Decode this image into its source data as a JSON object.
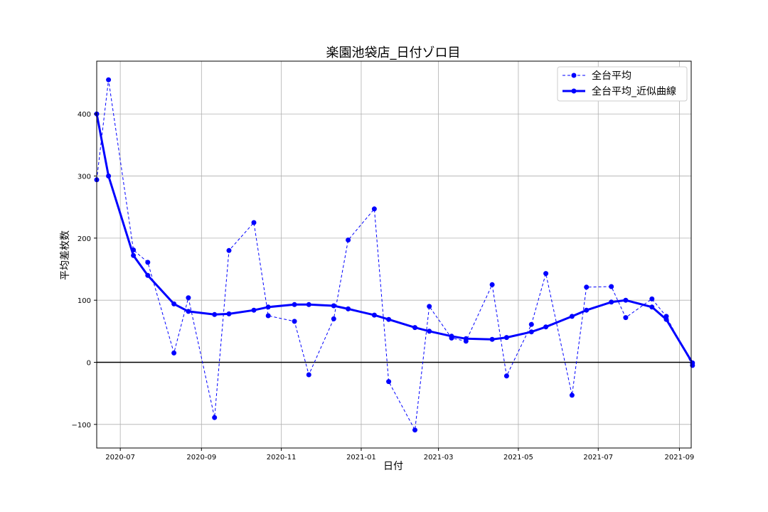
{
  "chart_data": {
    "type": "line",
    "title": "楽園池袋店_日付ゾロ目",
    "xlabel": "日付",
    "ylabel": "平均差枚数",
    "ylim": [
      -138,
      485
    ],
    "xlim": [
      "2020-06-13",
      "2021-09-10"
    ],
    "grid": true,
    "legend_position": "top-right",
    "x_tick_labels": [
      "2020-07",
      "2020-09",
      "2020-11",
      "2021-01",
      "2021-03",
      "2021-05",
      "2021-07",
      "2021-09"
    ],
    "y_tick_labels": [
      "−100",
      "0",
      "100",
      "200",
      "300",
      "400"
    ],
    "y_ticks": [
      -100,
      0,
      100,
      200,
      300,
      400
    ],
    "reference_line_y": 0,
    "series": [
      {
        "name": "全台平均",
        "style": "dashed-markers",
        "color": "#0000ff",
        "points": [
          [
            "2020-06-13",
            294
          ],
          [
            "2020-06-22",
            455
          ],
          [
            "2020-07-11",
            181
          ],
          [
            "2020-07-22",
            161
          ],
          [
            "2020-08-11",
            15
          ],
          [
            "2020-08-22",
            104
          ],
          [
            "2020-09-11",
            -89
          ],
          [
            "2020-09-22",
            180
          ],
          [
            "2020-10-11",
            225
          ],
          [
            "2020-10-22",
            75
          ],
          [
            "2020-11-11",
            66
          ],
          [
            "2020-11-22",
            -20
          ],
          [
            "2020-12-11",
            70
          ],
          [
            "2020-12-22",
            197
          ],
          [
            "2021-01-11",
            247
          ],
          [
            "2021-01-22",
            -31
          ],
          [
            "2021-02-11",
            -109
          ],
          [
            "2021-02-22",
            90
          ],
          [
            "2021-03-11",
            39
          ],
          [
            "2021-03-22",
            34
          ],
          [
            "2021-04-11",
            125
          ],
          [
            "2021-04-22",
            -22
          ],
          [
            "2021-05-11",
            61
          ],
          [
            "2021-05-22",
            143
          ],
          [
            "2021-06-11",
            -53
          ],
          [
            "2021-06-22",
            121
          ],
          [
            "2021-07-11",
            122
          ],
          [
            "2021-07-22",
            72
          ],
          [
            "2021-08-11",
            102
          ],
          [
            "2021-08-22",
            74
          ],
          [
            "2021-09-11",
            -5
          ]
        ]
      },
      {
        "name": "全台平均_近似曲線",
        "style": "solid-markers",
        "color": "#0000ff",
        "points": [
          [
            "2020-06-13",
            400
          ],
          [
            "2020-06-22",
            300
          ],
          [
            "2020-07-11",
            172
          ],
          [
            "2020-07-22",
            140
          ],
          [
            "2020-08-11",
            94
          ],
          [
            "2020-08-22",
            82
          ],
          [
            "2020-09-11",
            77
          ],
          [
            "2020-09-22",
            78
          ],
          [
            "2020-10-11",
            84
          ],
          [
            "2020-10-22",
            89
          ],
          [
            "2020-11-11",
            93
          ],
          [
            "2020-11-22",
            93
          ],
          [
            "2020-12-11",
            91
          ],
          [
            "2020-12-22",
            86
          ],
          [
            "2021-01-11",
            76
          ],
          [
            "2021-01-22",
            69
          ],
          [
            "2021-02-11",
            56
          ],
          [
            "2021-02-22",
            50
          ],
          [
            "2021-03-11",
            42
          ],
          [
            "2021-03-22",
            38
          ],
          [
            "2021-04-11",
            37
          ],
          [
            "2021-04-22",
            40
          ],
          [
            "2021-05-11",
            49
          ],
          [
            "2021-05-22",
            57
          ],
          [
            "2021-06-11",
            74
          ],
          [
            "2021-06-22",
            84
          ],
          [
            "2021-07-11",
            97
          ],
          [
            "2021-07-22",
            100
          ],
          [
            "2021-08-11",
            89
          ],
          [
            "2021-08-22",
            69
          ],
          [
            "2021-09-11",
            -1
          ]
        ]
      }
    ]
  }
}
